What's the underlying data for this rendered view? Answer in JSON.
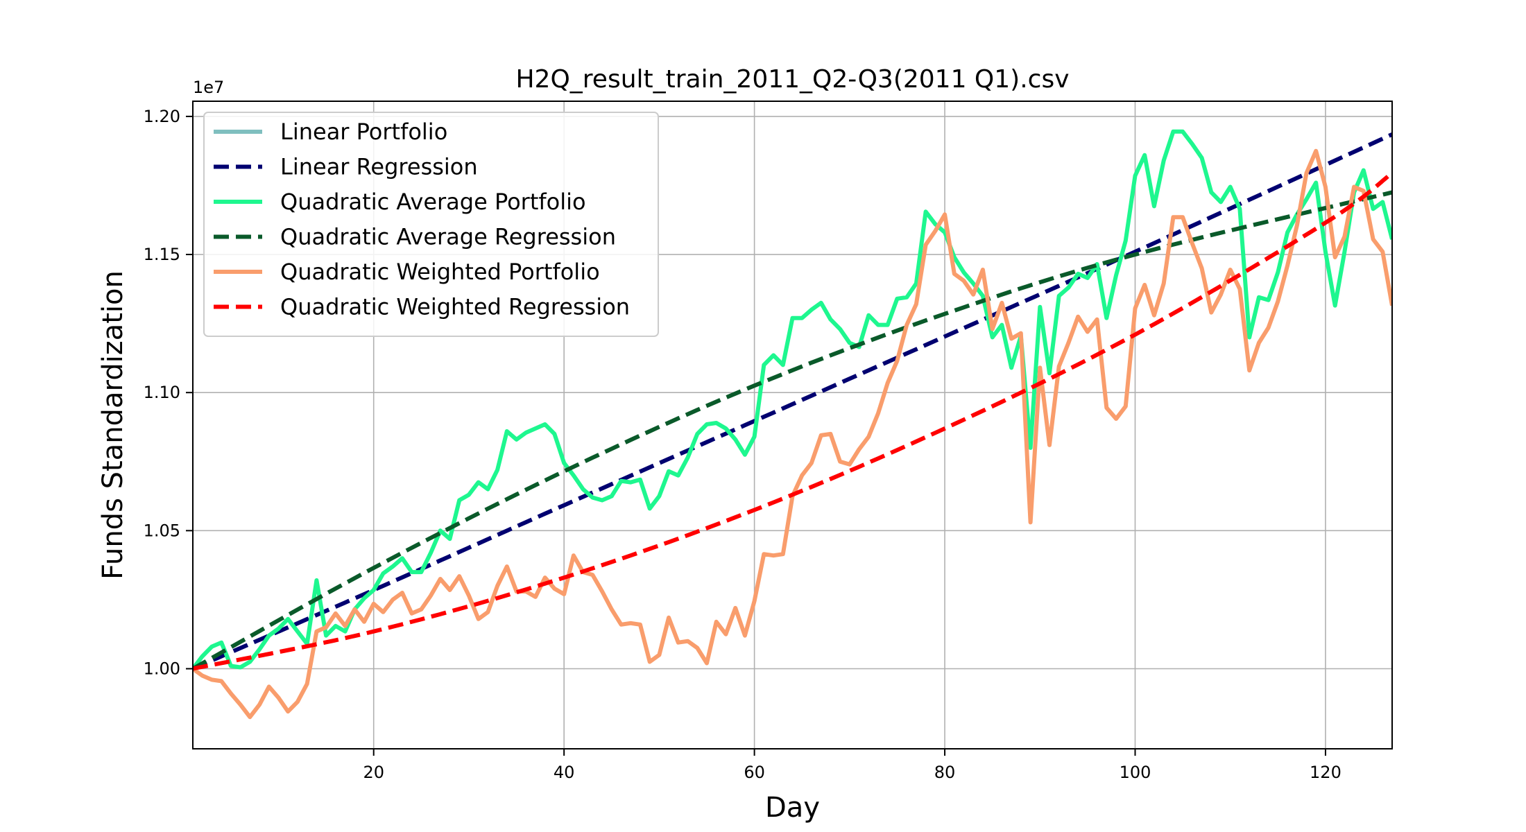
{
  "chart_data": {
    "type": "line",
    "title": "H2Q_result_train_2011_Q2-Q3(2011 Q1).csv",
    "xlabel": "Day",
    "ylabel": "Funds Standardization",
    "y_offset_label": "1e7",
    "xlim": [
      1,
      127
    ],
    "ylim": [
      0.971,
      1.2055
    ],
    "x_ticks": [
      20,
      40,
      60,
      80,
      100,
      120
    ],
    "y_ticks": [
      1.0,
      1.05,
      1.1,
      1.15,
      1.2
    ],
    "y_tick_labels": [
      "1.00",
      "1.05",
      "1.10",
      "1.15",
      "1.20"
    ],
    "grid": true,
    "legend_position": "top-left",
    "series": [
      {
        "name": "Linear Portfolio",
        "color": "#7fbfbf",
        "dash": "solid",
        "x": [],
        "y": []
      },
      {
        "name": "Linear Regression",
        "color": "#000070",
        "dash": "dashed",
        "x": [
          1,
          20,
          40,
          60,
          80,
          100,
          127
        ],
        "y": [
          1.0,
          1.0285,
          1.0592,
          1.0897,
          1.1203,
          1.151,
          1.1935
        ]
      },
      {
        "name": "Quadratic Average Portfolio",
        "color": "#1ef78f",
        "dash": "solid",
        "x": [
          1,
          2,
          3,
          4,
          5,
          6,
          7,
          8,
          9,
          10,
          11,
          12,
          13,
          14,
          15,
          16,
          17,
          18,
          19,
          20,
          21,
          22,
          23,
          24,
          25,
          26,
          27,
          28,
          29,
          30,
          31,
          32,
          33,
          34,
          35,
          36,
          37,
          38,
          39,
          40,
          41,
          42,
          43,
          44,
          45,
          46,
          47,
          48,
          49,
          50,
          51,
          52,
          53,
          54,
          55,
          56,
          57,
          58,
          59,
          60,
          61,
          62,
          63,
          64,
          65,
          66,
          67,
          68,
          69,
          70,
          71,
          72,
          73,
          74,
          75,
          76,
          77,
          78,
          79,
          80,
          81,
          82,
          83,
          84,
          85,
          86,
          87,
          88,
          89,
          90,
          91,
          92,
          93,
          94,
          95,
          96,
          97,
          98,
          99,
          100,
          101,
          102,
          103,
          104,
          105,
          106,
          107,
          108,
          109,
          110,
          111,
          112,
          113,
          114,
          115,
          116,
          117,
          118,
          119,
          120,
          121,
          122,
          123,
          124,
          125,
          126,
          127
        ],
        "y": [
          1.0,
          1.0045,
          1.008,
          1.0095,
          1.001,
          1.0005,
          1.0025,
          1.007,
          1.012,
          1.0145,
          1.018,
          1.0135,
          1.009,
          1.032,
          1.012,
          1.0155,
          1.0135,
          1.0215,
          1.0255,
          1.0285,
          1.0345,
          1.037,
          1.04,
          1.035,
          1.035,
          1.042,
          1.05,
          1.047,
          1.061,
          1.063,
          1.0675,
          1.065,
          1.072,
          1.086,
          1.083,
          1.0855,
          1.087,
          1.0885,
          1.085,
          1.0745,
          1.07,
          1.065,
          1.062,
          1.061,
          1.0625,
          1.068,
          1.0675,
          1.0685,
          1.058,
          1.0625,
          1.0715,
          1.07,
          1.0765,
          1.085,
          1.0885,
          1.089,
          1.087,
          1.083,
          1.0775,
          1.084,
          1.11,
          1.1135,
          1.11,
          1.127,
          1.127,
          1.13,
          1.1325,
          1.1265,
          1.123,
          1.118,
          1.1165,
          1.128,
          1.1245,
          1.1245,
          1.134,
          1.1345,
          1.1395,
          1.1655,
          1.161,
          1.158,
          1.149,
          1.1435,
          1.1395,
          1.135,
          1.12,
          1.1245,
          1.109,
          1.1205,
          1.08,
          1.131,
          1.107,
          1.135,
          1.138,
          1.143,
          1.1415,
          1.1465,
          1.127,
          1.1425,
          1.155,
          1.1785,
          1.186,
          1.1675,
          1.184,
          1.1945,
          1.1945,
          1.19,
          1.185,
          1.1725,
          1.169,
          1.1745,
          1.1665,
          1.12,
          1.1345,
          1.1335,
          1.1435,
          1.158,
          1.1645,
          1.17,
          1.176,
          1.151,
          1.1315,
          1.151,
          1.1725,
          1.1805,
          1.1665,
          1.169,
          1.1555
        ]
      },
      {
        "name": "Quadratic Average Regression",
        "color": "#0a5a2a",
        "dash": "dashed",
        "x": [
          1,
          20,
          40,
          60,
          80,
          100,
          127
        ],
        "y": [
          1.0,
          1.0365,
          1.0715,
          1.1025,
          1.1285,
          1.15,
          1.1725
        ]
      },
      {
        "name": "Quadratic Weighted Portfolio",
        "color": "#f99d6c",
        "dash": "solid",
        "x": [
          1,
          2,
          3,
          4,
          5,
          6,
          7,
          8,
          9,
          10,
          11,
          12,
          13,
          14,
          15,
          16,
          17,
          18,
          19,
          20,
          21,
          22,
          23,
          24,
          25,
          26,
          27,
          28,
          29,
          30,
          31,
          32,
          33,
          34,
          35,
          36,
          37,
          38,
          39,
          40,
          41,
          42,
          43,
          44,
          45,
          46,
          47,
          48,
          49,
          50,
          51,
          52,
          53,
          54,
          55,
          56,
          57,
          58,
          59,
          60,
          61,
          62,
          63,
          64,
          65,
          66,
          67,
          68,
          69,
          70,
          71,
          72,
          73,
          74,
          75,
          76,
          77,
          78,
          79,
          80,
          81,
          82,
          83,
          84,
          85,
          86,
          87,
          88,
          89,
          90,
          91,
          92,
          93,
          94,
          95,
          96,
          97,
          98,
          99,
          100,
          101,
          102,
          103,
          104,
          105,
          106,
          107,
          108,
          109,
          110,
          111,
          112,
          113,
          114,
          115,
          116,
          117,
          118,
          119,
          120,
          121,
          122,
          123,
          124,
          125,
          126,
          127
        ],
        "y": [
          1.0,
          0.9975,
          0.996,
          0.9955,
          0.991,
          0.987,
          0.9825,
          0.987,
          0.9935,
          0.9895,
          0.9845,
          0.988,
          0.9945,
          1.0135,
          1.015,
          1.02,
          1.0155,
          1.0215,
          1.017,
          1.0235,
          1.0205,
          1.025,
          1.0275,
          1.02,
          1.0215,
          1.0265,
          1.0325,
          1.0285,
          1.0335,
          1.0265,
          1.018,
          1.0205,
          1.03,
          1.037,
          1.028,
          1.028,
          1.026,
          1.033,
          1.029,
          1.027,
          1.041,
          1.035,
          1.034,
          1.028,
          1.0215,
          1.016,
          1.0165,
          1.016,
          1.0025,
          1.005,
          1.0185,
          1.0095,
          1.01,
          1.0075,
          1.002,
          1.017,
          1.0125,
          1.022,
          1.012,
          1.0245,
          1.0415,
          1.041,
          1.0415,
          1.0625,
          1.07,
          1.0745,
          1.0845,
          1.085,
          1.075,
          1.074,
          1.0795,
          1.084,
          1.0925,
          1.1035,
          1.1115,
          1.1245,
          1.132,
          1.1535,
          1.1585,
          1.1645,
          1.143,
          1.1405,
          1.1355,
          1.1445,
          1.123,
          1.1325,
          1.1195,
          1.1215,
          1.053,
          1.109,
          1.081,
          1.1095,
          1.118,
          1.1275,
          1.122,
          1.1265,
          1.0945,
          1.0905,
          1.095,
          1.1305,
          1.139,
          1.128,
          1.1395,
          1.1635,
          1.1635,
          1.154,
          1.145,
          1.129,
          1.1355,
          1.1445,
          1.1375,
          1.108,
          1.118,
          1.1235,
          1.133,
          1.146,
          1.1605,
          1.1795,
          1.1875,
          1.1745,
          1.149,
          1.1565,
          1.1745,
          1.173,
          1.1555,
          1.151,
          1.1315
        ]
      },
      {
        "name": "Quadratic Weighted Regression",
        "color": "#ff0000",
        "dash": "dashed",
        "x": [
          1,
          20,
          40,
          60,
          80,
          100,
          120,
          127
        ],
        "y": [
          1.0,
          1.0135,
          1.033,
          1.0575,
          1.087,
          1.121,
          1.1615,
          1.1795
        ]
      }
    ]
  }
}
